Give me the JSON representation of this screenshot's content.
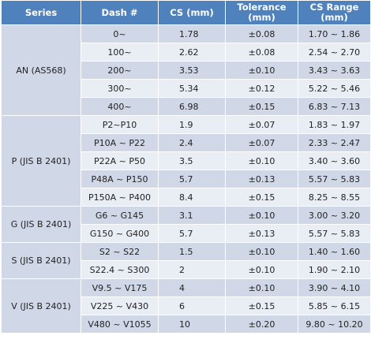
{
  "headers": {
    "series": "Series",
    "dash": "Dash #",
    "cs": "CS (mm)",
    "tolerance_l1": "Tolerance",
    "tolerance_l2": "(mm)",
    "range_l1": "CS Range",
    "range_l2": "(mm)"
  },
  "groups": [
    {
      "series": "AN (AS568)",
      "rows": [
        {
          "dash": "0~",
          "cs": "1.78",
          "tol": "±0.08",
          "range": "1.70 ~ 1.86"
        },
        {
          "dash": "100~",
          "cs": "2.62",
          "tol": "±0.08",
          "range": "2.54 ~ 2.70"
        },
        {
          "dash": "200~",
          "cs": "3.53",
          "tol": "±0.10",
          "range": "3.43 ~ 3.63"
        },
        {
          "dash": "300~",
          "cs": "5.34",
          "tol": "±0.12",
          "range": "5.22 ~ 5.46"
        },
        {
          "dash": "400~",
          "cs": "6.98",
          "tol": "±0.15",
          "range": "6.83 ~ 7.13"
        }
      ]
    },
    {
      "series": "P (JIS B 2401)",
      "rows": [
        {
          "dash": "P2~P10",
          "cs": "1.9",
          "tol": "±0.07",
          "range": "1.83 ~ 1.97"
        },
        {
          "dash": "P10A ~ P22",
          "cs": "2.4",
          "tol": "±0.07",
          "range": "2.33 ~ 2.47"
        },
        {
          "dash": "P22A ~ P50",
          "cs": "3.5",
          "tol": "±0.10",
          "range": "3.40 ~ 3.60"
        },
        {
          "dash": "P48A ~ P150",
          "cs": "5.7",
          "tol": "±0.13",
          "range": "5.57 ~ 5.83"
        },
        {
          "dash": "P150A ~ P400",
          "cs": "8.4",
          "tol": "±0.15",
          "range": "8.25 ~ 8.55"
        }
      ]
    },
    {
      "series": "G (JIS B 2401)",
      "rows": [
        {
          "dash": "G6 ~ G145",
          "cs": "3.1",
          "tol": "±0.10",
          "range": "3.00 ~ 3.20"
        },
        {
          "dash": "G150 ~ G400",
          "cs": "5.7",
          "tol": "±0.13",
          "range": "5.57 ~ 5.83"
        }
      ]
    },
    {
      "series": "S (JIS B 2401)",
      "rows": [
        {
          "dash": "S2 ~ S22",
          "cs": "1.5",
          "tol": "±0.10",
          "range": "1.40 ~ 1.60"
        },
        {
          "dash": "S22.4 ~ S300",
          "cs": "2",
          "tol": "±0.10",
          "range": "1.90 ~ 2.10"
        }
      ]
    },
    {
      "series": "V (JIS B 2401)",
      "rows": [
        {
          "dash": "V9.5 ~ V175",
          "cs": "4",
          "tol": "±0.10",
          "range": "3.90 ~ 4.10"
        },
        {
          "dash": "V225 ~ V430",
          "cs": "6",
          "tol": "±0.15",
          "range": "5.85 ~ 6.15"
        },
        {
          "dash": "V480 ~ V1055",
          "cs": "10",
          "tol": "±0.20",
          "range": "9.80 ~ 10.20"
        }
      ]
    }
  ]
}
